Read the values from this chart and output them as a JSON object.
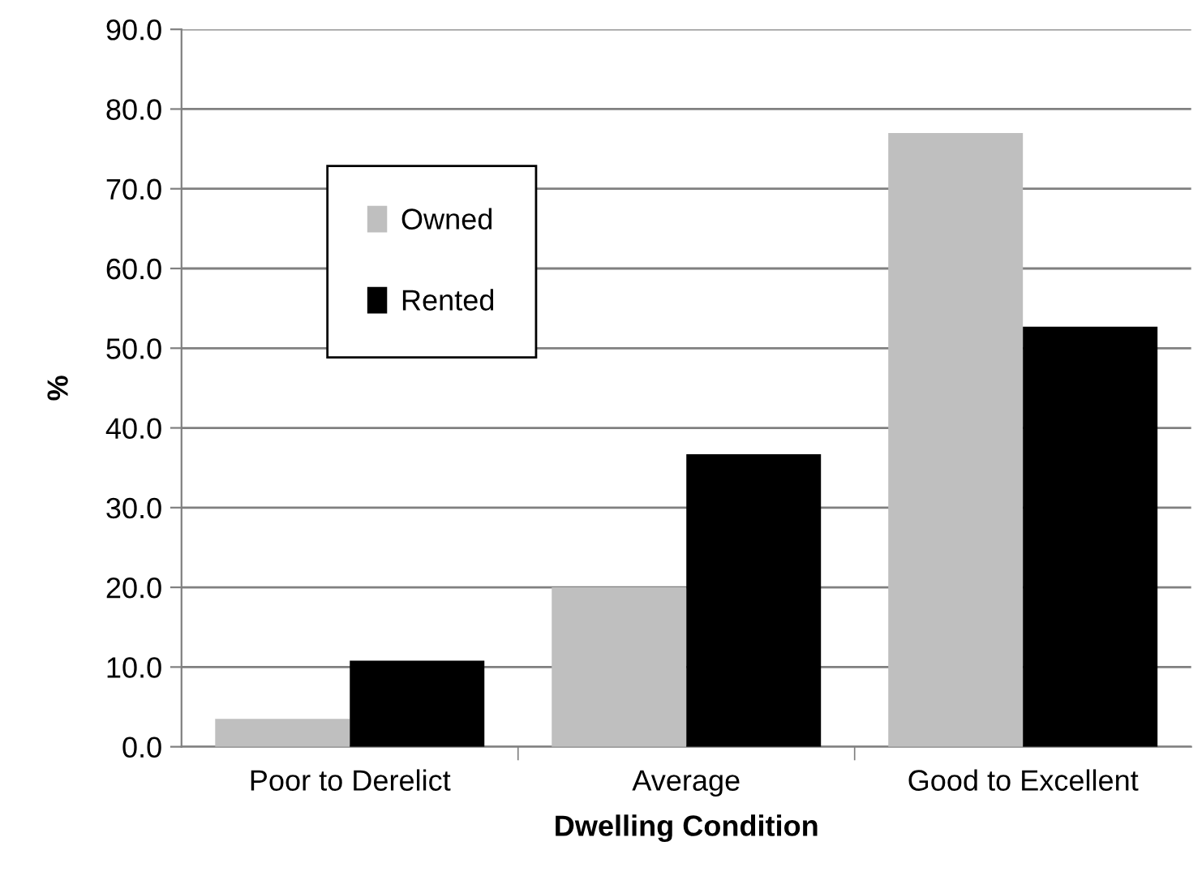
{
  "chart_data": {
    "type": "bar",
    "xlabel": "Dwelling Condition",
    "ylabel": "%",
    "categories": [
      "Poor to Derelict",
      "Average",
      "Good to Excellent"
    ],
    "series": [
      {
        "name": "Owned",
        "color": "#bfbfbf",
        "values": [
          3.5,
          20.0,
          77.0
        ]
      },
      {
        "name": "Rented",
        "color": "#000000",
        "values": [
          10.8,
          36.7,
          52.7
        ]
      }
    ],
    "ylim": [
      0,
      90
    ],
    "yticks": [
      {
        "value": 0,
        "label": "0.0"
      },
      {
        "value": 10,
        "label": "10.0"
      },
      {
        "value": 20,
        "label": "20.0"
      },
      {
        "value": 30,
        "label": "30.0"
      },
      {
        "value": 40,
        "label": "40.0"
      },
      {
        "value": 50,
        "label": "50.0"
      },
      {
        "value": 60,
        "label": "60.0"
      },
      {
        "value": 70,
        "label": "70.0"
      },
      {
        "value": 80,
        "label": "80.0"
      },
      {
        "value": 90,
        "label": "90.0"
      }
    ],
    "grid": "y",
    "legend": "top left"
  }
}
